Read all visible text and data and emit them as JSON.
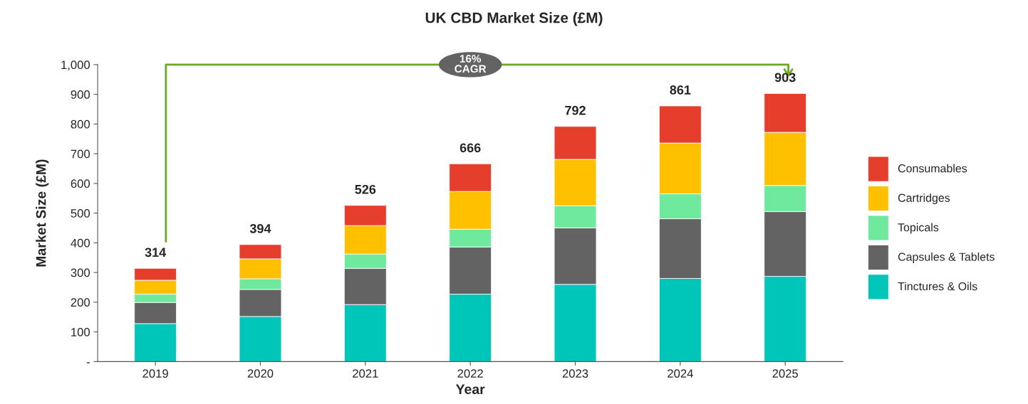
{
  "chart_data": {
    "type": "bar",
    "title": "UK CBD Market Size (£M)",
    "xlabel": "Year",
    "ylabel": "Market Size (£M)",
    "categories": [
      "2019",
      "2020",
      "2021",
      "2022",
      "2023",
      "2024",
      "2025"
    ],
    "stacked": true,
    "series": [
      {
        "name": "Tinctures & Oils",
        "color": "#00c5b9",
        "values": [
          128,
          152,
          192,
          227,
          260,
          280,
          287
        ]
      },
      {
        "name": "Capsules & Tablets",
        "color": "#636363",
        "values": [
          71,
          91,
          122,
          159,
          190,
          201,
          218
        ]
      },
      {
        "name": "Topicals",
        "color": "#6ee99e",
        "values": [
          28,
          36,
          48,
          60,
          75,
          84,
          88
        ]
      },
      {
        "name": "Cartridges",
        "color": "#ffc000",
        "values": [
          47,
          67,
          96,
          127,
          156,
          171,
          179
        ]
      },
      {
        "name": "Consumables",
        "color": "#e53e2d",
        "values": [
          40,
          48,
          68,
          93,
          111,
          125,
          131
        ]
      }
    ],
    "totals": [
      "314",
      "394",
      "526",
      "666",
      "792",
      "861",
      "903"
    ],
    "ylim": [
      0,
      1000
    ],
    "yticks": [
      {
        "value": 0,
        "label": "-"
      },
      100,
      200,
      300,
      400,
      500,
      600,
      700,
      800,
      900,
      {
        "value": 1000,
        "label": "1,000"
      }
    ],
    "annotations": [
      "16%\nCAGR"
    ],
    "grid": false,
    "legend": "right"
  }
}
